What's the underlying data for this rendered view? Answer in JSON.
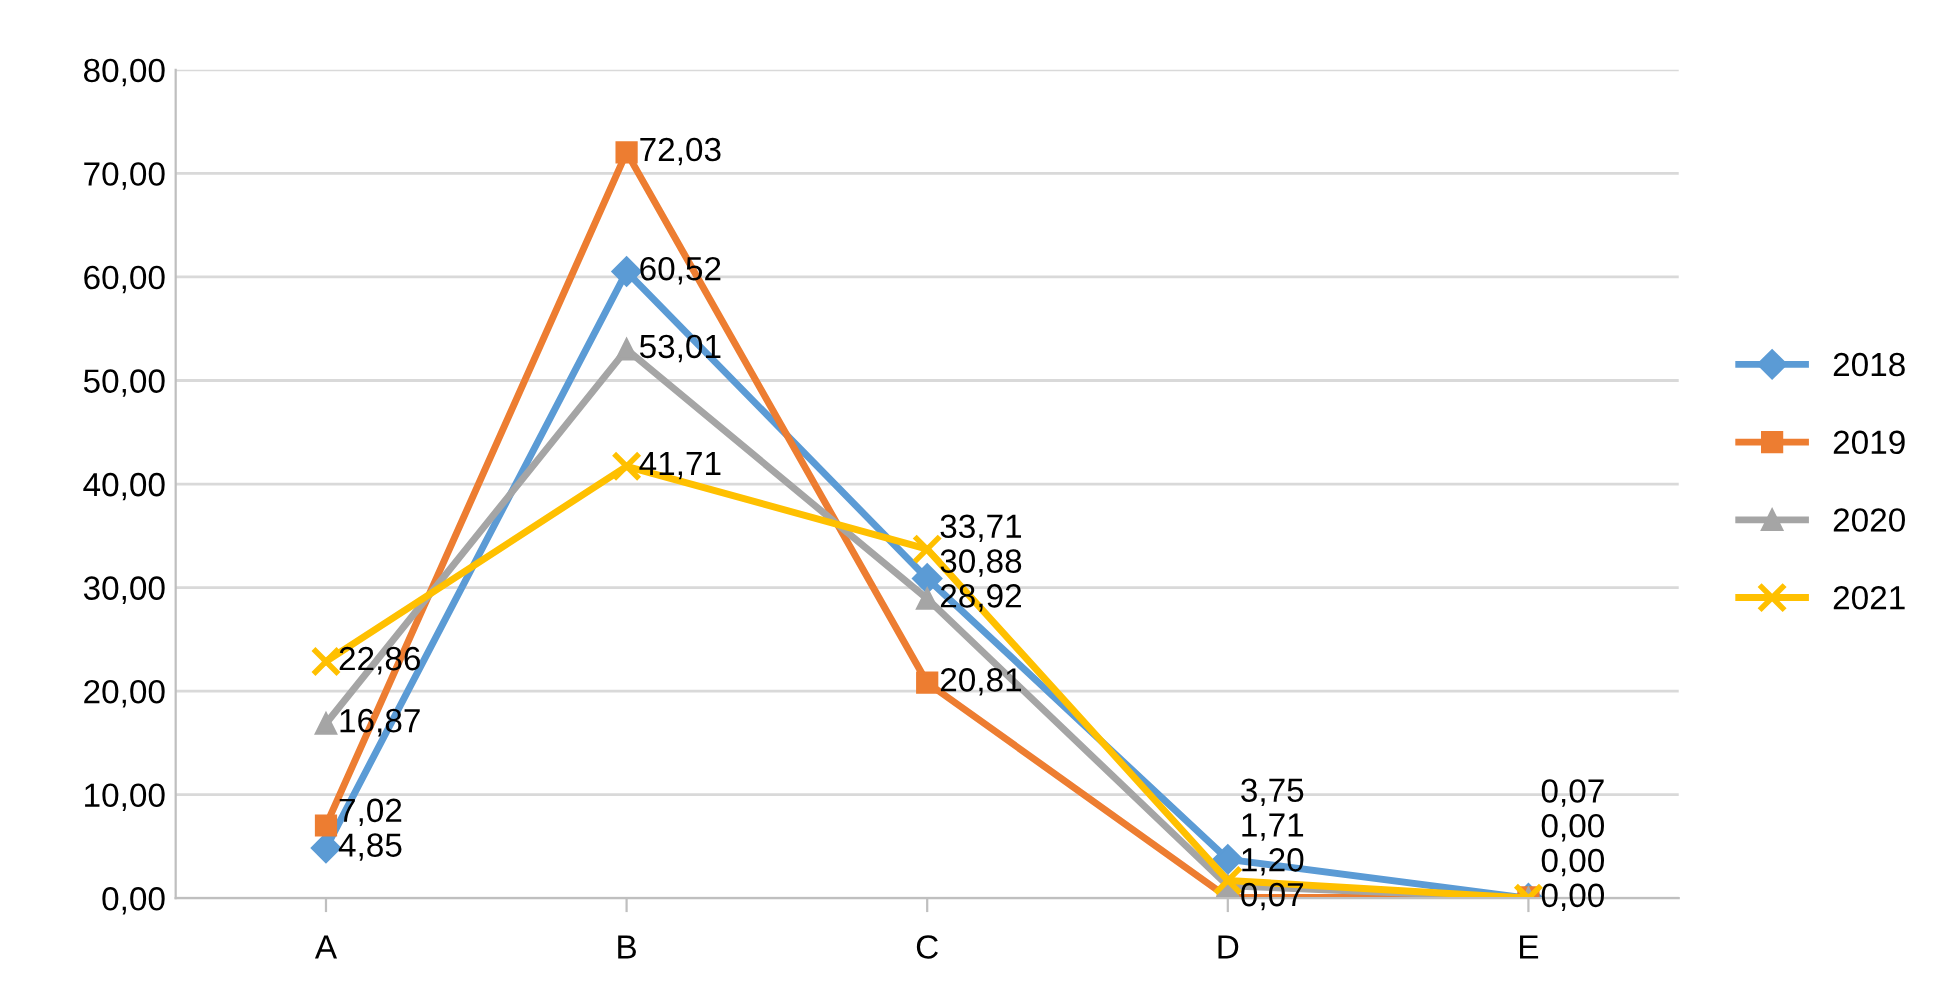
{
  "chart_data": {
    "type": "line",
    "categories": [
      "A",
      "B",
      "C",
      "D",
      "E"
    ],
    "series": [
      {
        "name": "2018",
        "color": "#5b9bd5",
        "marker": "diamond",
        "values": [
          4.85,
          60.52,
          30.88,
          3.75,
          0.0
        ],
        "value_labels": [
          "4,85",
          "60,52",
          "30,88",
          "3,75",
          "0,00"
        ]
      },
      {
        "name": "2019",
        "color": "#ed7d31",
        "marker": "square",
        "values": [
          7.02,
          72.03,
          20.81,
          0.07,
          0.07
        ],
        "value_labels": [
          "7,02",
          "72,03",
          "20,81",
          "0,07",
          "0,07"
        ]
      },
      {
        "name": "2020",
        "color": "#a5a5a5",
        "marker": "triangle",
        "values": [
          16.87,
          53.01,
          28.92,
          1.2,
          0.0
        ],
        "value_labels": [
          "16,87",
          "53,01",
          "28,92",
          "1,20",
          "0,00"
        ]
      },
      {
        "name": "2021",
        "color": "#ffc000",
        "marker": "cross",
        "values": [
          22.86,
          41.71,
          33.71,
          1.71,
          0.0
        ],
        "value_labels": [
          "22,86",
          "41,71",
          "33,71",
          "1,71",
          "0,00"
        ]
      }
    ],
    "ylim": [
      0,
      80
    ],
    "yticks": [
      {
        "value": 0,
        "label": "0,00"
      },
      {
        "value": 10,
        "label": "10,00"
      },
      {
        "value": 20,
        "label": "20,00"
      },
      {
        "value": 30,
        "label": "30,00"
      },
      {
        "value": 40,
        "label": "40,00"
      },
      {
        "value": 50,
        "label": "50,00"
      },
      {
        "value": 60,
        "label": "60,00"
      },
      {
        "value": 70,
        "label": "70,00"
      },
      {
        "value": 80,
        "label": "80,00"
      }
    ],
    "grid": "y",
    "legend": "right"
  }
}
